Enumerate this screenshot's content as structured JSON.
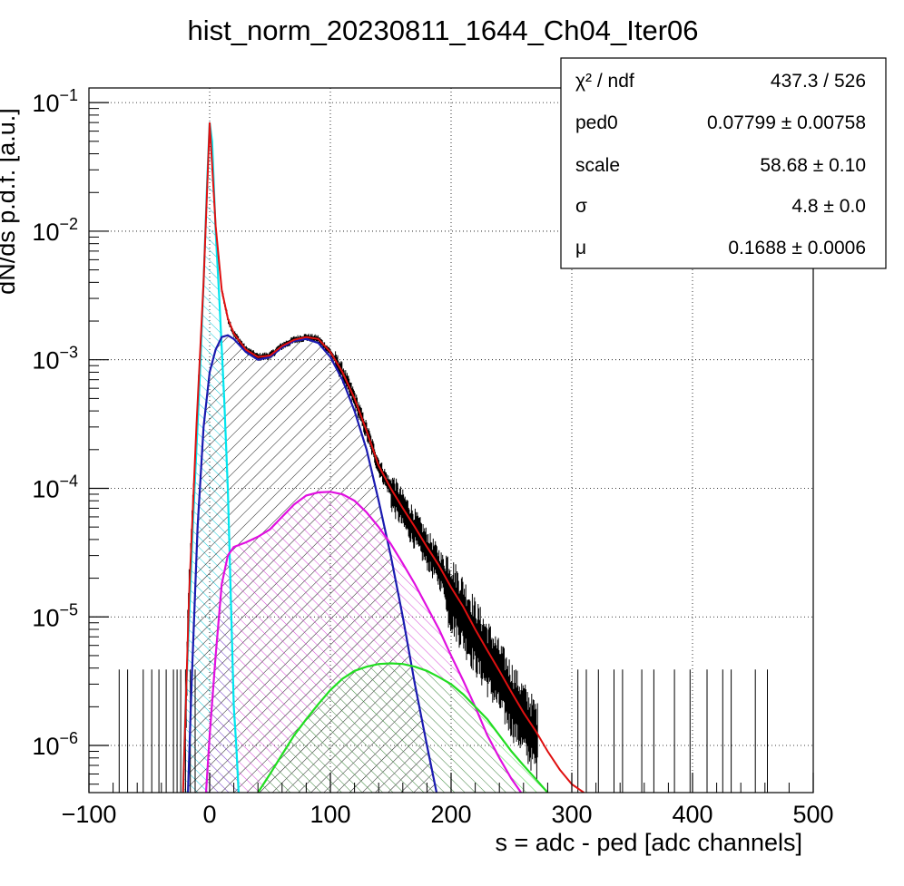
{
  "chart_data": {
    "type": "line",
    "title": "hist_norm_20230811_1644_Ch04_Iter06",
    "xlabel": "s = adc - ped [adc channels]",
    "ylabel": "dN/ds p.d.f. [a.u.]",
    "xlim": [
      -100,
      500
    ],
    "ylim": [
      4.3e-07,
      0.13
    ],
    "yscale": "log",
    "grid": true,
    "x_ticks": [
      {
        "value": -100,
        "label": "−100"
      },
      {
        "value": 0,
        "label": "0"
      },
      {
        "value": 100,
        "label": "100"
      },
      {
        "value": 200,
        "label": "200"
      },
      {
        "value": 300,
        "label": "300"
      },
      {
        "value": 400,
        "label": "400"
      },
      {
        "value": 500,
        "label": "500"
      }
    ],
    "y_ticks": [
      {
        "value": 1e-06,
        "base": "10",
        "exp": "−6"
      },
      {
        "value": 1e-05,
        "base": "10",
        "exp": "−5"
      },
      {
        "value": 0.0001,
        "base": "10",
        "exp": "−4"
      },
      {
        "value": 0.001,
        "base": "10",
        "exp": "−3"
      },
      {
        "value": 0.01,
        "base": "10",
        "exp": "−2"
      },
      {
        "value": 0.1,
        "base": "10",
        "exp": "−1"
      }
    ],
    "series": [
      {
        "color": "#00e5ee",
        "hatch": true,
        "points": [
          [
            -22,
            4.3e-07
          ],
          [
            -20,
            2e-06
          ],
          [
            -17,
            1e-05
          ],
          [
            -14,
            5e-05
          ],
          [
            -11,
            0.0002
          ],
          [
            -8,
            0.0008
          ],
          [
            -5,
            0.004
          ],
          [
            -2,
            0.025
          ],
          [
            0,
            0.07
          ],
          [
            2,
            0.05
          ],
          [
            5,
            0.01
          ],
          [
            8,
            0.003
          ],
          [
            12,
            0.0005
          ],
          [
            15,
            0.0001
          ],
          [
            18,
            1e-05
          ],
          [
            20,
            2e-06
          ],
          [
            22,
            1e-06
          ],
          [
            24,
            4.3e-07
          ]
        ]
      },
      {
        "color": "#1a1ab0",
        "hatch": true,
        "points": [
          [
            -18,
            4.3e-07
          ],
          [
            -15,
            3e-06
          ],
          [
            -10,
            5e-05
          ],
          [
            -5,
            0.0003
          ],
          [
            0,
            0.0008
          ],
          [
            5,
            0.0012
          ],
          [
            10,
            0.0015
          ],
          [
            15,
            0.00155
          ],
          [
            20,
            0.00145
          ],
          [
            30,
            0.00115
          ],
          [
            40,
            0.001
          ],
          [
            50,
            0.00105
          ],
          [
            60,
            0.00125
          ],
          [
            70,
            0.0014
          ],
          [
            80,
            0.00145
          ],
          [
            90,
            0.00135
          ],
          [
            100,
            0.00105
          ],
          [
            110,
            0.0007
          ],
          [
            120,
            0.0004
          ],
          [
            130,
            0.0002
          ],
          [
            140,
            8e-05
          ],
          [
            150,
            3e-05
          ],
          [
            160,
            1e-05
          ],
          [
            170,
            3e-06
          ],
          [
            180,
            1e-06
          ],
          [
            188,
            4.3e-07
          ]
        ]
      },
      {
        "color": "#e010e0",
        "hatch": true,
        "points": [
          [
            -3,
            4.3e-07
          ],
          [
            0,
            1.2e-06
          ],
          [
            5,
            5e-06
          ],
          [
            10,
            1.8e-05
          ],
          [
            15,
            3e-05
          ],
          [
            20,
            3.5e-05
          ],
          [
            30,
            3.8e-05
          ],
          [
            40,
            4.2e-05
          ],
          [
            50,
            4.8e-05
          ],
          [
            60,
            6e-05
          ],
          [
            70,
            7.5e-05
          ],
          [
            80,
            8.8e-05
          ],
          [
            90,
            9.3e-05
          ],
          [
            100,
            9.4e-05
          ],
          [
            110,
            9e-05
          ],
          [
            120,
            8e-05
          ],
          [
            130,
            6.5e-05
          ],
          [
            140,
            5e-05
          ],
          [
            150,
            3.7e-05
          ],
          [
            160,
            2.6e-05
          ],
          [
            170,
            1.8e-05
          ],
          [
            180,
            1.2e-05
          ],
          [
            190,
            8e-06
          ],
          [
            200,
            5e-06
          ],
          [
            210,
            3.2e-06
          ],
          [
            220,
            2e-06
          ],
          [
            230,
            1.2e-06
          ],
          [
            240,
            8e-07
          ],
          [
            250,
            5.5e-07
          ],
          [
            258,
            4.3e-07
          ]
        ]
      },
      {
        "color": "#22dd22",
        "hatch": true,
        "points": [
          [
            40,
            4.3e-07
          ],
          [
            50,
            6e-07
          ],
          [
            60,
            8.5e-07
          ],
          [
            70,
            1.2e-06
          ],
          [
            80,
            1.6e-06
          ],
          [
            90,
            2.1e-06
          ],
          [
            100,
            2.7e-06
          ],
          [
            110,
            3.3e-06
          ],
          [
            120,
            3.8e-06
          ],
          [
            130,
            4.1e-06
          ],
          [
            140,
            4.3e-06
          ],
          [
            150,
            4.35e-06
          ],
          [
            160,
            4.3e-06
          ],
          [
            170,
            4.1e-06
          ],
          [
            180,
            3.8e-06
          ],
          [
            190,
            3.4e-06
          ],
          [
            200,
            3e-06
          ],
          [
            210,
            2.5e-06
          ],
          [
            220,
            2e-06
          ],
          [
            230,
            1.6e-06
          ],
          [
            240,
            1.2e-06
          ],
          [
            250,
            9e-07
          ],
          [
            260,
            7e-07
          ],
          [
            270,
            5.5e-07
          ],
          [
            280,
            4.3e-07
          ]
        ]
      },
      {
        "color": "#e01010",
        "hatch": false,
        "points": [
          [
            -22,
            4.3e-07
          ],
          [
            -17,
            1.5e-05
          ],
          [
            -11,
            0.0003
          ],
          [
            -5,
            0.004
          ],
          [
            0,
            0.07
          ],
          [
            5,
            0.011
          ],
          [
            10,
            0.0035
          ],
          [
            15,
            0.0021
          ],
          [
            20,
            0.0016
          ],
          [
            30,
            0.0012
          ],
          [
            40,
            0.00105
          ],
          [
            50,
            0.00108
          ],
          [
            60,
            0.00128
          ],
          [
            70,
            0.00143
          ],
          [
            80,
            0.0015
          ],
          [
            90,
            0.00145
          ],
          [
            100,
            0.00115
          ],
          [
            110,
            0.0008
          ],
          [
            120,
            0.0005
          ],
          [
            130,
            0.00028
          ],
          [
            140,
            0.00015
          ],
          [
            150,
            0.0001
          ],
          [
            160,
            7e-05
          ],
          [
            170,
            5e-05
          ],
          [
            180,
            3.5e-05
          ],
          [
            190,
            2.5e-05
          ],
          [
            200,
            1.7e-05
          ],
          [
            210,
            1.2e-05
          ],
          [
            220,
            8e-06
          ],
          [
            230,
            5.5e-06
          ],
          [
            240,
            3.8e-06
          ],
          [
            250,
            2.6e-06
          ],
          [
            260,
            1.8e-06
          ],
          [
            270,
            1.3e-06
          ],
          [
            280,
            9e-07
          ],
          [
            290,
            6.5e-07
          ],
          [
            300,
            5e-07
          ],
          [
            310,
            4.3e-07
          ]
        ]
      }
    ],
    "stats_box": {
      "rows": [
        {
          "label": "χ² / ndf",
          "value": "437.3 / 526"
        },
        {
          "label": "ped0",
          "value": "0.07799 ± 0.00758"
        },
        {
          "label": "scale",
          "value": "58.68 ± 0.10"
        },
        {
          "label": "σ",
          "value": "4.8 ± 0.0"
        },
        {
          "label": "μ",
          "value": "0.1688 ± 0.0006"
        }
      ]
    }
  }
}
